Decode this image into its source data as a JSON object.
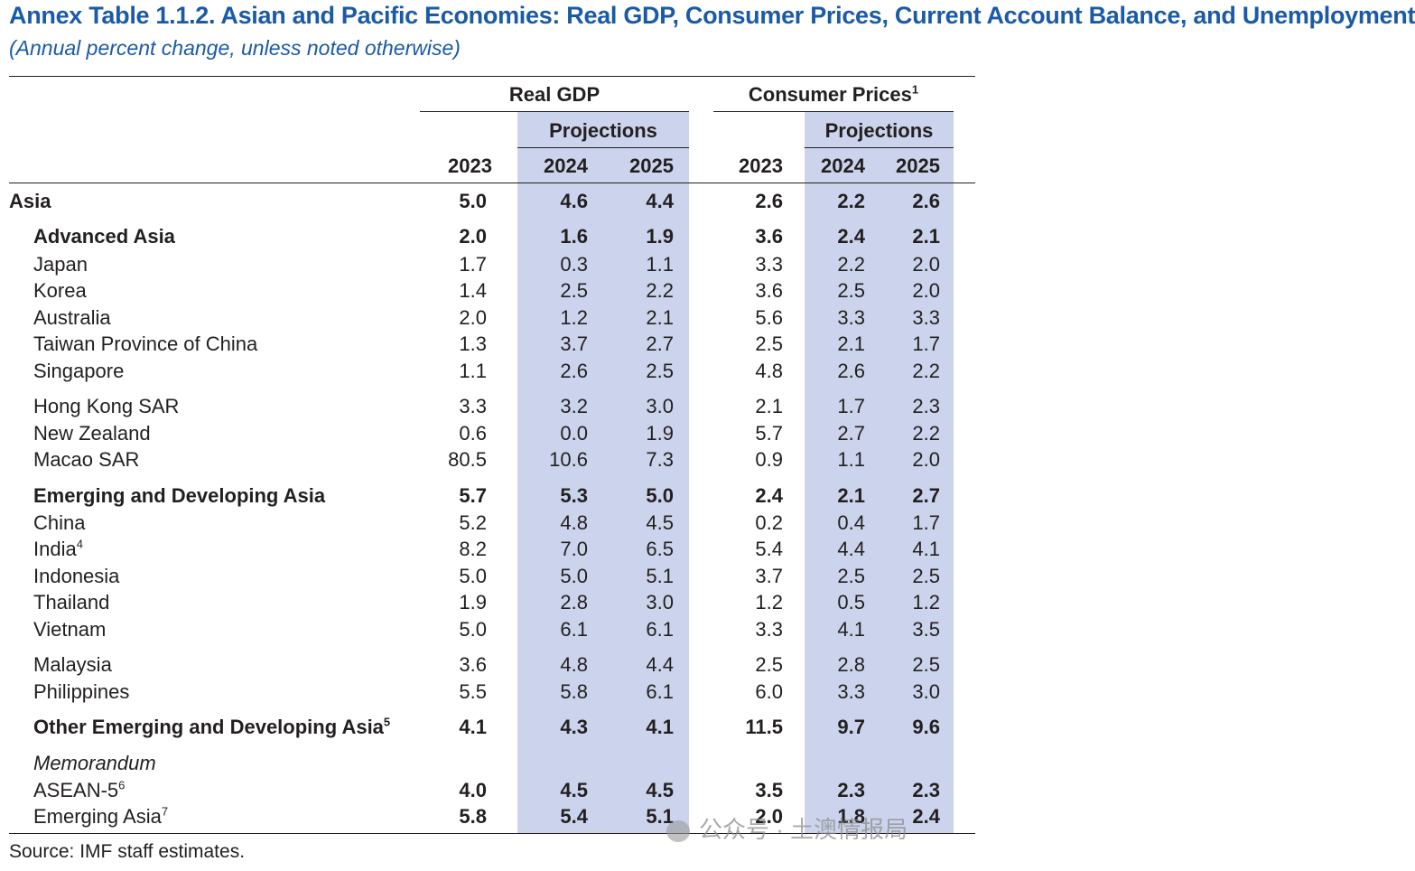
{
  "title": "Annex Table 1.1.2. Asian and Pacific Economies: Real GDP, Consumer Prices, Current Account Balance, and Unemployment",
  "subtitle": "(Annual percent change, unless noted otherwise)",
  "headers": {
    "real_gdp": "Real GDP",
    "consumer_prices": "Consumer Prices",
    "consumer_prices_note": "1",
    "projections": "Projections",
    "years": [
      "2023",
      "2024",
      "2025"
    ]
  },
  "rows": [
    {
      "label": "Asia",
      "note": "",
      "level": 0,
      "bold": true,
      "values": [
        "5.0",
        "4.6",
        "4.4",
        "2.6",
        "2.2",
        "2.6"
      ]
    },
    {
      "label": "Advanced Asia",
      "note": "",
      "level": 1,
      "bold": true,
      "values": [
        "2.0",
        "1.6",
        "1.9",
        "3.6",
        "2.4",
        "2.1"
      ]
    },
    {
      "label": "Japan",
      "note": "",
      "level": 1,
      "bold": false,
      "values": [
        "1.7",
        "0.3",
        "1.1",
        "3.3",
        "2.2",
        "2.0"
      ]
    },
    {
      "label": "Korea",
      "note": "",
      "level": 1,
      "bold": false,
      "values": [
        "1.4",
        "2.5",
        "2.2",
        "3.6",
        "2.5",
        "2.0"
      ]
    },
    {
      "label": "Australia",
      "note": "",
      "level": 1,
      "bold": false,
      "values": [
        "2.0",
        "1.2",
        "2.1",
        "5.6",
        "3.3",
        "3.3"
      ]
    },
    {
      "label": "Taiwan Province of China",
      "note": "",
      "level": 1,
      "bold": false,
      "values": [
        "1.3",
        "3.7",
        "2.7",
        "2.5",
        "2.1",
        "1.7"
      ]
    },
    {
      "label": "Singapore",
      "note": "",
      "level": 1,
      "bold": false,
      "values": [
        "1.1",
        "2.6",
        "2.5",
        "4.8",
        "2.6",
        "2.2"
      ]
    },
    {
      "label": "Hong Kong SAR",
      "note": "",
      "level": 1,
      "bold": false,
      "values": [
        "3.3",
        "3.2",
        "3.0",
        "2.1",
        "1.7",
        "2.3"
      ]
    },
    {
      "label": "New Zealand",
      "note": "",
      "level": 1,
      "bold": false,
      "values": [
        "0.6",
        "0.0",
        "1.9",
        "5.7",
        "2.7",
        "2.2"
      ]
    },
    {
      "label": "Macao SAR",
      "note": "",
      "level": 1,
      "bold": false,
      "values": [
        "80.5",
        "10.6",
        "7.3",
        "0.9",
        "1.1",
        "2.0"
      ]
    },
    {
      "label": "Emerging and Developing Asia",
      "note": "",
      "level": 1,
      "bold": true,
      "values": [
        "5.7",
        "5.3",
        "5.0",
        "2.4",
        "2.1",
        "2.7"
      ]
    },
    {
      "label": "China",
      "note": "",
      "level": 1,
      "bold": false,
      "values": [
        "5.2",
        "4.8",
        "4.5",
        "0.2",
        "0.4",
        "1.7"
      ]
    },
    {
      "label": "India",
      "note": "4",
      "level": 1,
      "bold": false,
      "values": [
        "8.2",
        "7.0",
        "6.5",
        "5.4",
        "4.4",
        "4.1"
      ]
    },
    {
      "label": "Indonesia",
      "note": "",
      "level": 1,
      "bold": false,
      "values": [
        "5.0",
        "5.0",
        "5.1",
        "3.7",
        "2.5",
        "2.5"
      ]
    },
    {
      "label": "Thailand",
      "note": "",
      "level": 1,
      "bold": false,
      "values": [
        "1.9",
        "2.8",
        "3.0",
        "1.2",
        "0.5",
        "1.2"
      ]
    },
    {
      "label": "Vietnam",
      "note": "",
      "level": 1,
      "bold": false,
      "values": [
        "5.0",
        "6.1",
        "6.1",
        "3.3",
        "4.1",
        "3.5"
      ]
    },
    {
      "label": "Malaysia",
      "note": "",
      "level": 1,
      "bold": false,
      "values": [
        "3.6",
        "4.8",
        "4.4",
        "2.5",
        "2.8",
        "2.5"
      ]
    },
    {
      "label": "Philippines",
      "note": "",
      "level": 1,
      "bold": false,
      "values": [
        "5.5",
        "5.8",
        "6.1",
        "6.0",
        "3.3",
        "3.0"
      ]
    },
    {
      "label": "Other Emerging and Developing Asia",
      "note": "5",
      "level": 1,
      "bold": true,
      "values": [
        "4.1",
        "4.3",
        "4.1",
        "11.5",
        "9.7",
        "9.6"
      ]
    },
    {
      "label": "Memorandum",
      "note": "",
      "level": 1,
      "bold": false,
      "italic": true,
      "values": [
        "",
        "",
        "",
        "",
        "",
        ""
      ]
    },
    {
      "label": "ASEAN-5",
      "note": "6",
      "level": 1,
      "bold": false,
      "boldValues": true,
      "values": [
        "4.0",
        "4.5",
        "4.5",
        "3.5",
        "2.3",
        "2.3"
      ]
    },
    {
      "label": "Emerging Asia",
      "note": "7",
      "level": 1,
      "bold": false,
      "boldValues": true,
      "values": [
        "5.8",
        "5.4",
        "5.1",
        "2.0",
        "1.8",
        "2.4"
      ]
    }
  ],
  "source": "Source: IMF staff estimates.",
  "watermark": "公众号 · 土澳情报局"
}
